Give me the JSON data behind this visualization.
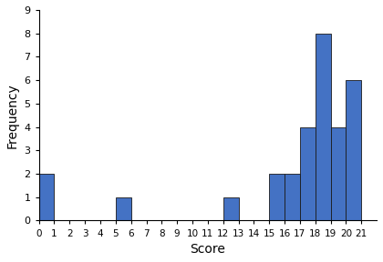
{
  "xlabel": "Score",
  "ylabel": "Frequency",
  "scores": [
    0,
    1,
    2,
    3,
    4,
    5,
    6,
    7,
    8,
    9,
    10,
    11,
    12,
    13,
    14,
    15,
    16,
    17,
    18,
    19,
    20,
    21
  ],
  "frequencies": [
    2,
    0,
    0,
    0,
    0,
    1,
    0,
    0,
    0,
    0,
    0,
    0,
    1,
    0,
    0,
    2,
    2,
    4,
    8,
    4,
    6,
    0
  ],
  "bar_color": "#4472C4",
  "bar_edge_color": "#1a1a1a",
  "xlim": [
    0,
    22
  ],
  "ylim": [
    0,
    9
  ],
  "yticks": [
    0,
    1,
    2,
    3,
    4,
    5,
    6,
    7,
    8,
    9
  ],
  "xticks": [
    0,
    1,
    2,
    3,
    4,
    5,
    6,
    7,
    8,
    9,
    10,
    11,
    12,
    13,
    14,
    15,
    16,
    17,
    18,
    19,
    20,
    21
  ]
}
